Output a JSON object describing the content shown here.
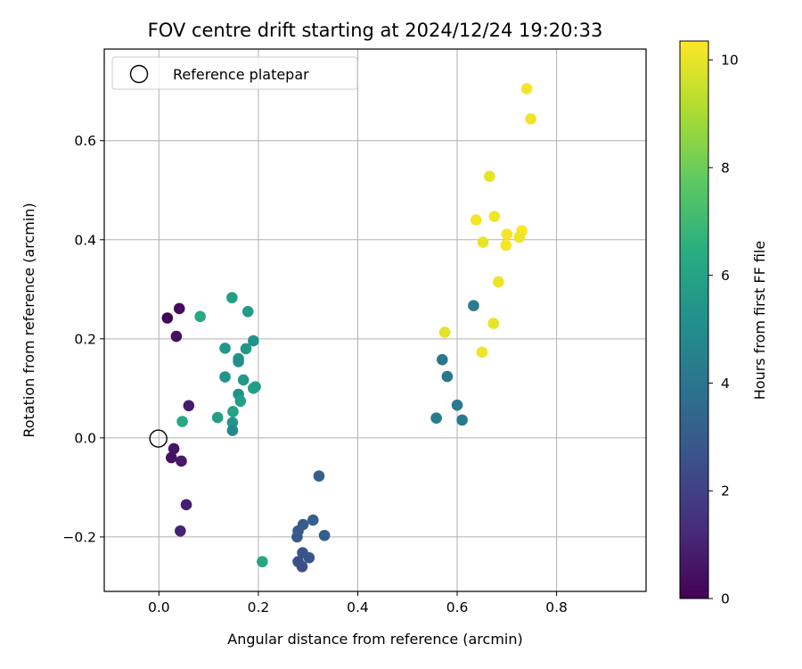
{
  "chart_data": {
    "type": "scatter",
    "title": "FOV centre drift starting at 2024/12/24 19:20:33",
    "xlabel": "Angular distance from reference (arcmin)",
    "ylabel": "Rotation from reference (arcmin)",
    "colorbar_label": "Hours from first FF file",
    "xlim": [
      -0.11,
      0.98
    ],
    "ylim": [
      -0.31,
      0.785
    ],
    "xticks": [
      0.0,
      0.2,
      0.4,
      0.6,
      0.8
    ],
    "xtick_labels": [
      "0.0",
      "0.2",
      "0.4",
      "0.6",
      "0.8"
    ],
    "yticks": [
      -0.2,
      0.0,
      0.2,
      0.4,
      0.6
    ],
    "ytick_labels": [
      "−0.2",
      "0.0",
      "0.2",
      "0.4",
      "0.6"
    ],
    "clim": [
      0,
      10.35
    ],
    "cticks": [
      0,
      2,
      4,
      6,
      8,
      10
    ],
    "ctick_labels": [
      "0",
      "2",
      "4",
      "6",
      "8",
      "10"
    ],
    "colormap": "viridis",
    "grid": true,
    "legend": {
      "entry": "Reference platepar",
      "placement": "top-left"
    },
    "reference": {
      "x": 0.0,
      "y": 0.0
    },
    "points": [
      {
        "x": 0.017,
        "y": 0.242,
        "c": 0.15
      },
      {
        "x": 0.041,
        "y": 0.261,
        "c": 0.3
      },
      {
        "x": 0.035,
        "y": 0.205,
        "c": 0.45
      },
      {
        "x": 0.03,
        "y": -0.022,
        "c": 0.6
      },
      {
        "x": 0.025,
        "y": -0.04,
        "c": 0.5
      },
      {
        "x": 0.045,
        "y": -0.047,
        "c": 0.7
      },
      {
        "x": 0.055,
        "y": -0.135,
        "c": 0.9
      },
      {
        "x": 0.043,
        "y": -0.188,
        "c": 1.0
      },
      {
        "x": 0.06,
        "y": 0.065,
        "c": 0.8
      },
      {
        "x": 0.28,
        "y": -0.188,
        "c": 2.8
      },
      {
        "x": 0.278,
        "y": -0.2,
        "c": 2.9
      },
      {
        "x": 0.29,
        "y": -0.175,
        "c": 3.0
      },
      {
        "x": 0.31,
        "y": -0.166,
        "c": 3.1
      },
      {
        "x": 0.333,
        "y": -0.197,
        "c": 3.0
      },
      {
        "x": 0.322,
        "y": -0.077,
        "c": 3.2
      },
      {
        "x": 0.289,
        "y": -0.232,
        "c": 2.6
      },
      {
        "x": 0.28,
        "y": -0.25,
        "c": 2.5
      },
      {
        "x": 0.302,
        "y": -0.242,
        "c": 2.7
      },
      {
        "x": 0.288,
        "y": -0.26,
        "c": 2.4
      },
      {
        "x": 0.208,
        "y": -0.25,
        "c": 6.1
      },
      {
        "x": 0.147,
        "y": 0.283,
        "c": 5.8
      },
      {
        "x": 0.179,
        "y": 0.255,
        "c": 5.6
      },
      {
        "x": 0.083,
        "y": 0.245,
        "c": 6.2
      },
      {
        "x": 0.133,
        "y": 0.181,
        "c": 5.4
      },
      {
        "x": 0.175,
        "y": 0.18,
        "c": 5.5
      },
      {
        "x": 0.19,
        "y": 0.196,
        "c": 5.2
      },
      {
        "x": 0.16,
        "y": 0.16,
        "c": 5.3
      },
      {
        "x": 0.16,
        "y": 0.154,
        "c": 5.1
      },
      {
        "x": 0.133,
        "y": 0.123,
        "c": 5.3
      },
      {
        "x": 0.17,
        "y": 0.117,
        "c": 5.5
      },
      {
        "x": 0.194,
        "y": 0.103,
        "c": 5.6
      },
      {
        "x": 0.19,
        "y": 0.1,
        "c": 5.7
      },
      {
        "x": 0.16,
        "y": 0.088,
        "c": 5.2
      },
      {
        "x": 0.164,
        "y": 0.074,
        "c": 5.8
      },
      {
        "x": 0.149,
        "y": 0.053,
        "c": 5.9
      },
      {
        "x": 0.118,
        "y": 0.041,
        "c": 5.7
      },
      {
        "x": 0.148,
        "y": 0.031,
        "c": 5.4
      },
      {
        "x": 0.148,
        "y": 0.015,
        "c": 4.8
      },
      {
        "x": 0.047,
        "y": 0.033,
        "c": 6.2
      },
      {
        "x": 0.633,
        "y": 0.267,
        "c": 4.3
      },
      {
        "x": 0.57,
        "y": 0.158,
        "c": 4.0
      },
      {
        "x": 0.58,
        "y": 0.124,
        "c": 4.1
      },
      {
        "x": 0.6,
        "y": 0.066,
        "c": 4.2
      },
      {
        "x": 0.558,
        "y": 0.04,
        "c": 4.3
      },
      {
        "x": 0.61,
        "y": 0.036,
        "c": 4.2
      },
      {
        "x": 0.74,
        "y": 0.705,
        "c": 10.2
      },
      {
        "x": 0.748,
        "y": 0.644,
        "c": 10.1
      },
      {
        "x": 0.665,
        "y": 0.528,
        "c": 10.0
      },
      {
        "x": 0.638,
        "y": 0.44,
        "c": 10.2
      },
      {
        "x": 0.675,
        "y": 0.447,
        "c": 10.1
      },
      {
        "x": 0.7,
        "y": 0.411,
        "c": 10.2
      },
      {
        "x": 0.73,
        "y": 0.418,
        "c": 10.3
      },
      {
        "x": 0.725,
        "y": 0.405,
        "c": 10.1
      },
      {
        "x": 0.652,
        "y": 0.395,
        "c": 10.0
      },
      {
        "x": 0.698,
        "y": 0.389,
        "c": 10.2
      },
      {
        "x": 0.683,
        "y": 0.315,
        "c": 10.1
      },
      {
        "x": 0.673,
        "y": 0.231,
        "c": 10.0
      },
      {
        "x": 0.575,
        "y": 0.213,
        "c": 9.9
      },
      {
        "x": 0.65,
        "y": 0.173,
        "c": 10.1
      }
    ]
  }
}
